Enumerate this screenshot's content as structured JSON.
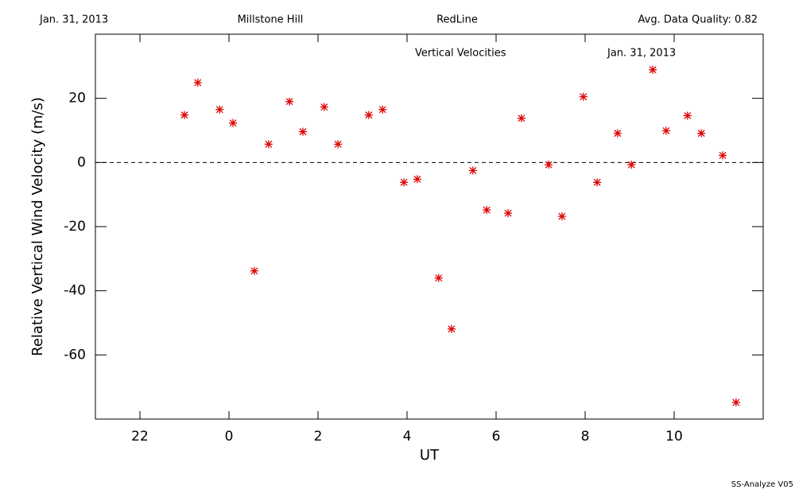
{
  "header": {
    "date": "Jan. 31, 2013",
    "site": "Millstone Hill",
    "instrument": "RedLine",
    "quality": "Avg. Data Quality: 0.82"
  },
  "footer": "SS-Analyze V05",
  "chart_data": {
    "type": "scatter",
    "title": "Vertical Velocities",
    "subtitle": "Jan. 31, 2013",
    "x_label": "UT",
    "y_label": "Relative Vertical Wind Velocity (m/s)",
    "color": "#dd0000",
    "zero_line": 0,
    "xlim": [
      21,
      36
    ],
    "ylim": [
      -80,
      40
    ],
    "xticks": [
      22,
      {
        "value": 24,
        "label": "0"
      },
      {
        "value": 26,
        "label": "2"
      },
      {
        "value": 28,
        "label": "4"
      },
      {
        "value": 30,
        "label": "6"
      },
      {
        "value": 32,
        "label": "8"
      },
      {
        "value": 34,
        "label": "10"
      }
    ],
    "yticks": [
      -60,
      -40,
      -20,
      0,
      20
    ],
    "x": [
      23.0,
      23.3,
      23.79,
      24.09,
      24.57,
      24.89,
      25.36,
      25.66,
      26.14,
      26.45,
      27.14,
      27.45,
      27.93,
      28.23,
      28.71,
      29.0,
      29.48,
      29.79,
      30.27,
      30.57,
      31.18,
      31.48,
      31.96,
      32.27,
      32.73,
      33.04,
      33.52,
      33.82,
      34.3,
      34.61,
      35.09,
      35.39
    ],
    "values": [
      14.8,
      24.9,
      16.5,
      12.3,
      -33.8,
      5.7,
      19.0,
      9.6,
      17.3,
      5.7,
      14.8,
      16.5,
      -6.2,
      -5.2,
      -36.0,
      -51.9,
      -2.5,
      -14.8,
      -15.8,
      13.8,
      -0.7,
      -16.8,
      20.5,
      -6.2,
      9.1,
      -0.7,
      28.9,
      9.9,
      14.6,
      9.1,
      2.2,
      -74.8
    ]
  }
}
